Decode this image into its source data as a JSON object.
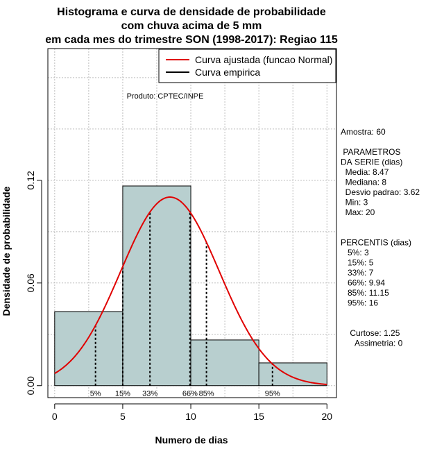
{
  "chart_data": {
    "type": "bar",
    "title_lines": [
      "Histograma e curva de densidade de probabilidade",
      "com chuva acima de 5 mm",
      "em cada mes do trimestre SON (1998-2017): Regiao 115"
    ],
    "xlabel": "Numero de dias",
    "ylabel": "Densidade de probabilidade",
    "xlim": [
      -0.5,
      20.7
    ],
    "ylim": [
      -0.007,
      0.197
    ],
    "x_ticks": [
      "0",
      "5",
      "10",
      "15",
      "20"
    ],
    "y_ticks": [
      "0.00",
      "0.06",
      "0.12"
    ],
    "grid": true,
    "bins": [
      {
        "start": 0,
        "end": 5,
        "density": 0.0433
      },
      {
        "start": 5,
        "end": 10,
        "density": 0.1167
      },
      {
        "start": 10,
        "end": 15,
        "density": 0.0267
      },
      {
        "start": 15,
        "end": 20,
        "density": 0.0133
      }
    ],
    "normal_fit": {
      "mean": 8.47,
      "sd": 3.62
    },
    "percentile_markers": [
      {
        "label": "5%",
        "x": 3
      },
      {
        "label": "15%",
        "x": 5
      },
      {
        "label": "33%",
        "x": 7
      },
      {
        "label": "66%",
        "x": 9.94
      },
      {
        "label": "85%",
        "x": 11.15
      },
      {
        "label": "95%",
        "x": 16
      }
    ],
    "legend": {
      "placement": "top-right",
      "entries": [
        {
          "label": "Curva ajustada (funcao Normal)",
          "color": "#e00000"
        },
        {
          "label": "Curva empirica",
          "color": "#000000"
        }
      ]
    },
    "annotation": "Produto: CPTEC/INPE",
    "stats_panel": [
      "Amostra: 60",
      "",
      " PARAMETROS",
      "DA SERIE (dias)",
      "  Media: 8.47",
      "  Mediana: 8",
      "  Desvio padrao: 3.62",
      "  Min: 3",
      "  Max: 20",
      "",
      "",
      "PERCENTIS (dias)",
      "   5%: 3",
      "   15%: 5",
      "   33%: 7",
      "   66%: 9.94",
      "   85%: 11.15",
      "   95%: 16",
      "",
      "",
      "    Curtose: 1.25",
      "      Assimetria: 0"
    ],
    "colors": {
      "bar_fill": "#b8cfcf",
      "curve": "#e00000",
      "grid": "#bdbdbd"
    }
  }
}
